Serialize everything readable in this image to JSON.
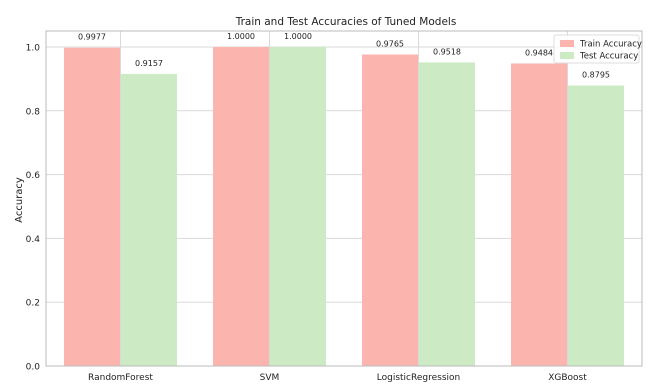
{
  "chart_data": {
    "type": "bar",
    "title": "Train and Test Accuracies of Tuned Models",
    "xlabel": "",
    "ylabel": "Accuracy",
    "categories": [
      "RandomForest",
      "SVM",
      "LogisticRegression",
      "XGBoost"
    ],
    "series": [
      {
        "name": "Train Accuracy",
        "values": [
          0.9977,
          1.0,
          0.9765,
          0.9484
        ],
        "labels": [
          "0.9977",
          "1.0000",
          "0.9765",
          "0.9484"
        ],
        "color": "#fbb4ae"
      },
      {
        "name": "Test Accuracy",
        "values": [
          0.9157,
          1.0,
          0.9518,
          0.8795
        ],
        "labels": [
          "0.9157",
          "1.0000",
          "0.9518",
          "0.8795"
        ],
        "color": "#ccebc5"
      }
    ],
    "ylim": [
      0,
      1.0
    ],
    "yticks": [
      "0.0",
      "0.2",
      "0.4",
      "0.6",
      "0.8",
      "1.0"
    ],
    "grid": true,
    "legend_position": "top-right"
  }
}
